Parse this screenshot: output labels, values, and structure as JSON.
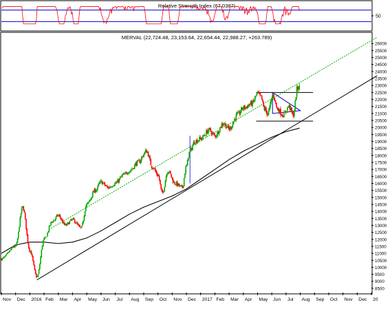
{
  "rsi_panel": {
    "title": "Relative Strength Index (67.0387)",
    "ylim": [
      0,
      100
    ],
    "levels": [
      30,
      70
    ],
    "tick": 50,
    "line_color": "#ff0000",
    "level_color": "#0000cc"
  },
  "price_panel": {
    "title": "MERVAL (22,724.48, 23,153.64, 22,654.44, 22,988.27, +263.789)"
  },
  "colors": {
    "up": "#00aa00",
    "down": "#ff0000",
    "support": "#000000",
    "resistance": "#00aa00",
    "moving_average": "#000000",
    "triangle": "#0000cc",
    "breakout_marker": "#0000cc"
  },
  "chart_data": [
    {
      "type": "line",
      "title": "Relative Strength Index (67.0387)",
      "ylim": [
        0,
        100
      ],
      "levels": [
        30,
        70
      ],
      "current_value": 67.0387
    },
    {
      "type": "candlestick",
      "title": "MERVAL (22,724.48, 23,153.64, 22,654.44, 22,988.27, +263.789)",
      "ylim": [
        8200,
        26700
      ],
      "y_tick_labels": [
        "8500",
        "9000",
        "9500",
        "10000",
        "10500",
        "11000",
        "11500",
        "12000",
        "12500",
        "13000",
        "13500",
        "14000",
        "14500",
        "15000",
        "15500",
        "16000",
        "16500",
        "17000",
        "17500",
        "18000",
        "18500",
        "19000",
        "19500",
        "20000",
        "20500",
        "21000",
        "21500",
        "22000",
        "22500",
        "23000",
        "23500",
        "24000",
        "24500",
        "25000",
        "25500",
        "26000"
      ],
      "x_tick_labels": [
        "Nov",
        "Dec",
        "2016",
        "Feb",
        "Mar",
        "Apr",
        "May",
        "Jun",
        "Jul",
        "Aug",
        "Sep",
        "Oct",
        "Nov",
        "Dec",
        "2017",
        "Feb",
        "Mar",
        "Apr",
        "May",
        "Jun",
        "Jul",
        "Aug",
        "Sep",
        "Oct",
        "Nov",
        "Dec",
        "20"
      ],
      "last": {
        "open": 22724.48,
        "high": 23153.64,
        "low": 22654.44,
        "close": 22988.27,
        "change": 263.789
      },
      "anchors": [
        {
          "t": 0,
          "v": 10600
        },
        {
          "t": 1,
          "v": 11500
        },
        {
          "t": 1.5,
          "v": 14300
        },
        {
          "t": 2,
          "v": 11200
        },
        {
          "t": 2.5,
          "v": 9300
        },
        {
          "t": 3,
          "v": 12000
        },
        {
          "t": 3.6,
          "v": 13300
        },
        {
          "t": 4,
          "v": 13700
        },
        {
          "t": 4.5,
          "v": 13000
        },
        {
          "t": 5,
          "v": 13400
        },
        {
          "t": 5.6,
          "v": 12800
        },
        {
          "t": 6,
          "v": 14500
        },
        {
          "t": 6.6,
          "v": 15500
        },
        {
          "t": 7,
          "v": 16100
        },
        {
          "t": 7.5,
          "v": 15700
        },
        {
          "t": 8,
          "v": 16000
        },
        {
          "t": 8.6,
          "v": 16600
        },
        {
          "t": 9,
          "v": 16900
        },
        {
          "t": 9.6,
          "v": 17500
        },
        {
          "t": 10.2,
          "v": 18300
        },
        {
          "t": 10.6,
          "v": 17200
        },
        {
          "t": 11,
          "v": 16600
        },
        {
          "t": 11.3,
          "v": 15300
        },
        {
          "t": 11.7,
          "v": 16900
        },
        {
          "t": 12.2,
          "v": 16000
        },
        {
          "t": 12.7,
          "v": 15700
        },
        {
          "t": 13,
          "v": 17200
        },
        {
          "t": 13.2,
          "v": 18200
        },
        {
          "t": 13.6,
          "v": 19000
        },
        {
          "t": 14,
          "v": 19200
        },
        {
          "t": 14.6,
          "v": 19800
        },
        {
          "t": 15,
          "v": 19400
        },
        {
          "t": 15.6,
          "v": 20300
        },
        {
          "t": 16,
          "v": 19900
        },
        {
          "t": 16.6,
          "v": 20900
        },
        {
          "t": 17,
          "v": 21400
        },
        {
          "t": 17.6,
          "v": 21700
        },
        {
          "t": 18,
          "v": 22400
        },
        {
          "t": 18.2,
          "v": 22200
        },
        {
          "t": 18.5,
          "v": 21300
        },
        {
          "t": 18.7,
          "v": 21000
        },
        {
          "t": 19.1,
          "v": 22300
        },
        {
          "t": 19.4,
          "v": 21300
        },
        {
          "t": 19.8,
          "v": 20900
        },
        {
          "t": 20.2,
          "v": 21500
        },
        {
          "t": 20.5,
          "v": 20900
        },
        {
          "t": 20.8,
          "v": 22800
        },
        {
          "t": 20.95,
          "v": 22988
        }
      ],
      "support_line": [
        {
          "t": 2.5,
          "v": 9100
        },
        {
          "t": 26.4,
          "v": 23700
        }
      ],
      "resistance_line": [
        {
          "t": 3.5,
          "v": 12800
        },
        {
          "t": 26.4,
          "v": 26450
        }
      ],
      "range_lines": [
        {
          "t1": 17.9,
          "t2": 21.9,
          "v": 22500
        },
        {
          "t1": 17.9,
          "t2": 21.9,
          "v": 20450
        }
      ],
      "triangle": [
        {
          "t": 19.05,
          "v": 22500
        },
        {
          "t": 19.05,
          "v": 21000
        },
        {
          "t": 21.0,
          "v": 21200
        }
      ],
      "moving_average": [
        {
          "t": 0,
          "v": 11000
        },
        {
          "t": 1,
          "v": 11600
        },
        {
          "t": 2,
          "v": 11800
        },
        {
          "t": 3,
          "v": 11800
        },
        {
          "t": 4,
          "v": 11700
        },
        {
          "t": 5,
          "v": 11800
        },
        {
          "t": 6,
          "v": 12100
        },
        {
          "t": 7,
          "v": 12600
        },
        {
          "t": 8,
          "v": 13200
        },
        {
          "t": 9,
          "v": 13800
        },
        {
          "t": 10,
          "v": 14300
        },
        {
          "t": 11,
          "v": 14700
        },
        {
          "t": 12,
          "v": 15100
        },
        {
          "t": 13,
          "v": 15600
        },
        {
          "t": 14,
          "v": 16300
        },
        {
          "t": 15,
          "v": 17000
        },
        {
          "t": 16,
          "v": 17700
        },
        {
          "t": 17,
          "v": 18300
        },
        {
          "t": 18,
          "v": 18800
        },
        {
          "t": 19,
          "v": 19300
        },
        {
          "t": 20,
          "v": 19700
        },
        {
          "t": 20.95,
          "v": 19950
        }
      ],
      "breakout_marker": {
        "t": 13.25,
        "v1": 16000,
        "v2": 19400
      }
    }
  ]
}
